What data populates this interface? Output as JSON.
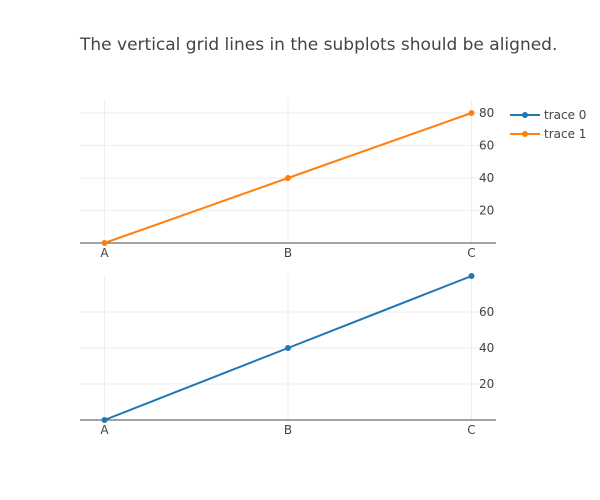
{
  "title": "The vertical grid lines in the subplots should be aligned.",
  "chart_data": [
    {
      "type": "line",
      "subplot": "top",
      "categories": [
        "A",
        "B",
        "C"
      ],
      "series": [
        {
          "name": "trace 1",
          "values": [
            0,
            40,
            80
          ],
          "color": "#ff7f0e"
        }
      ],
      "ylim": [
        0,
        88
      ],
      "yticks": [
        20,
        40,
        60,
        80
      ],
      "y_axis_side": "right",
      "grid": true
    },
    {
      "type": "line",
      "subplot": "bottom",
      "categories": [
        "A",
        "B",
        "C"
      ],
      "series": [
        {
          "name": "trace 0",
          "values": [
            0,
            40,
            80
          ],
          "color": "#1f77b4"
        }
      ],
      "ylim": [
        0,
        80
      ],
      "yticks": [
        20,
        40,
        60
      ],
      "y_axis_side": "right",
      "grid": true
    }
  ],
  "legend": {
    "placement": "top-right",
    "items": [
      {
        "name": "trace 0",
        "color": "#1f77b4"
      },
      {
        "name": "trace 1",
        "color": "#ff7f0e"
      }
    ]
  },
  "colors": {
    "grid": "#eeeeee",
    "axis_line": "#444444",
    "text": "#444444"
  }
}
